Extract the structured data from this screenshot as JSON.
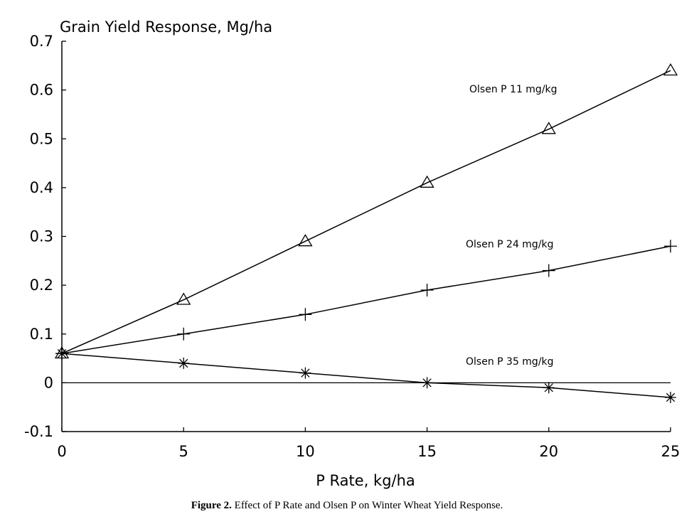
{
  "chart_data": {
    "type": "line",
    "title": "Grain Yield Response, Mg/ha",
    "xlabel": "P Rate, kg/ha",
    "ylabel": "",
    "x": [
      0,
      5,
      10,
      15,
      20,
      25
    ],
    "xlim": [
      0,
      25
    ],
    "ylim": [
      -0.1,
      0.7
    ],
    "xticks": [
      "0",
      "5",
      "10",
      "15",
      "20",
      "25"
    ],
    "yticks": [
      "-0.1",
      "0",
      "0.1",
      "0.2",
      "0.3",
      "0.4",
      "0.5",
      "0.6",
      "0.7"
    ],
    "grid": false,
    "zero_line": true,
    "series": [
      {
        "name": "Olsen P 11 mg/kg",
        "marker": "triangle",
        "values": [
          0.06,
          0.17,
          0.29,
          0.41,
          0.52,
          0.64
        ]
      },
      {
        "name": "Olsen P 24 mg/kg",
        "marker": "plus",
        "values": [
          0.06,
          0.1,
          0.14,
          0.19,
          0.23,
          0.28
        ]
      },
      {
        "name": "Olsen P 35 mg/kg",
        "marker": "asterisk",
        "values": [
          0.06,
          0.04,
          0.02,
          0.0,
          -0.01,
          -0.03
        ]
      }
    ],
    "caption": {
      "label": "Figure 2.",
      "text": "Effect of P Rate and Olsen P on Winter Wheat Yield Response."
    },
    "colors": {
      "ink": "#000000",
      "background": "#ffffff"
    }
  }
}
